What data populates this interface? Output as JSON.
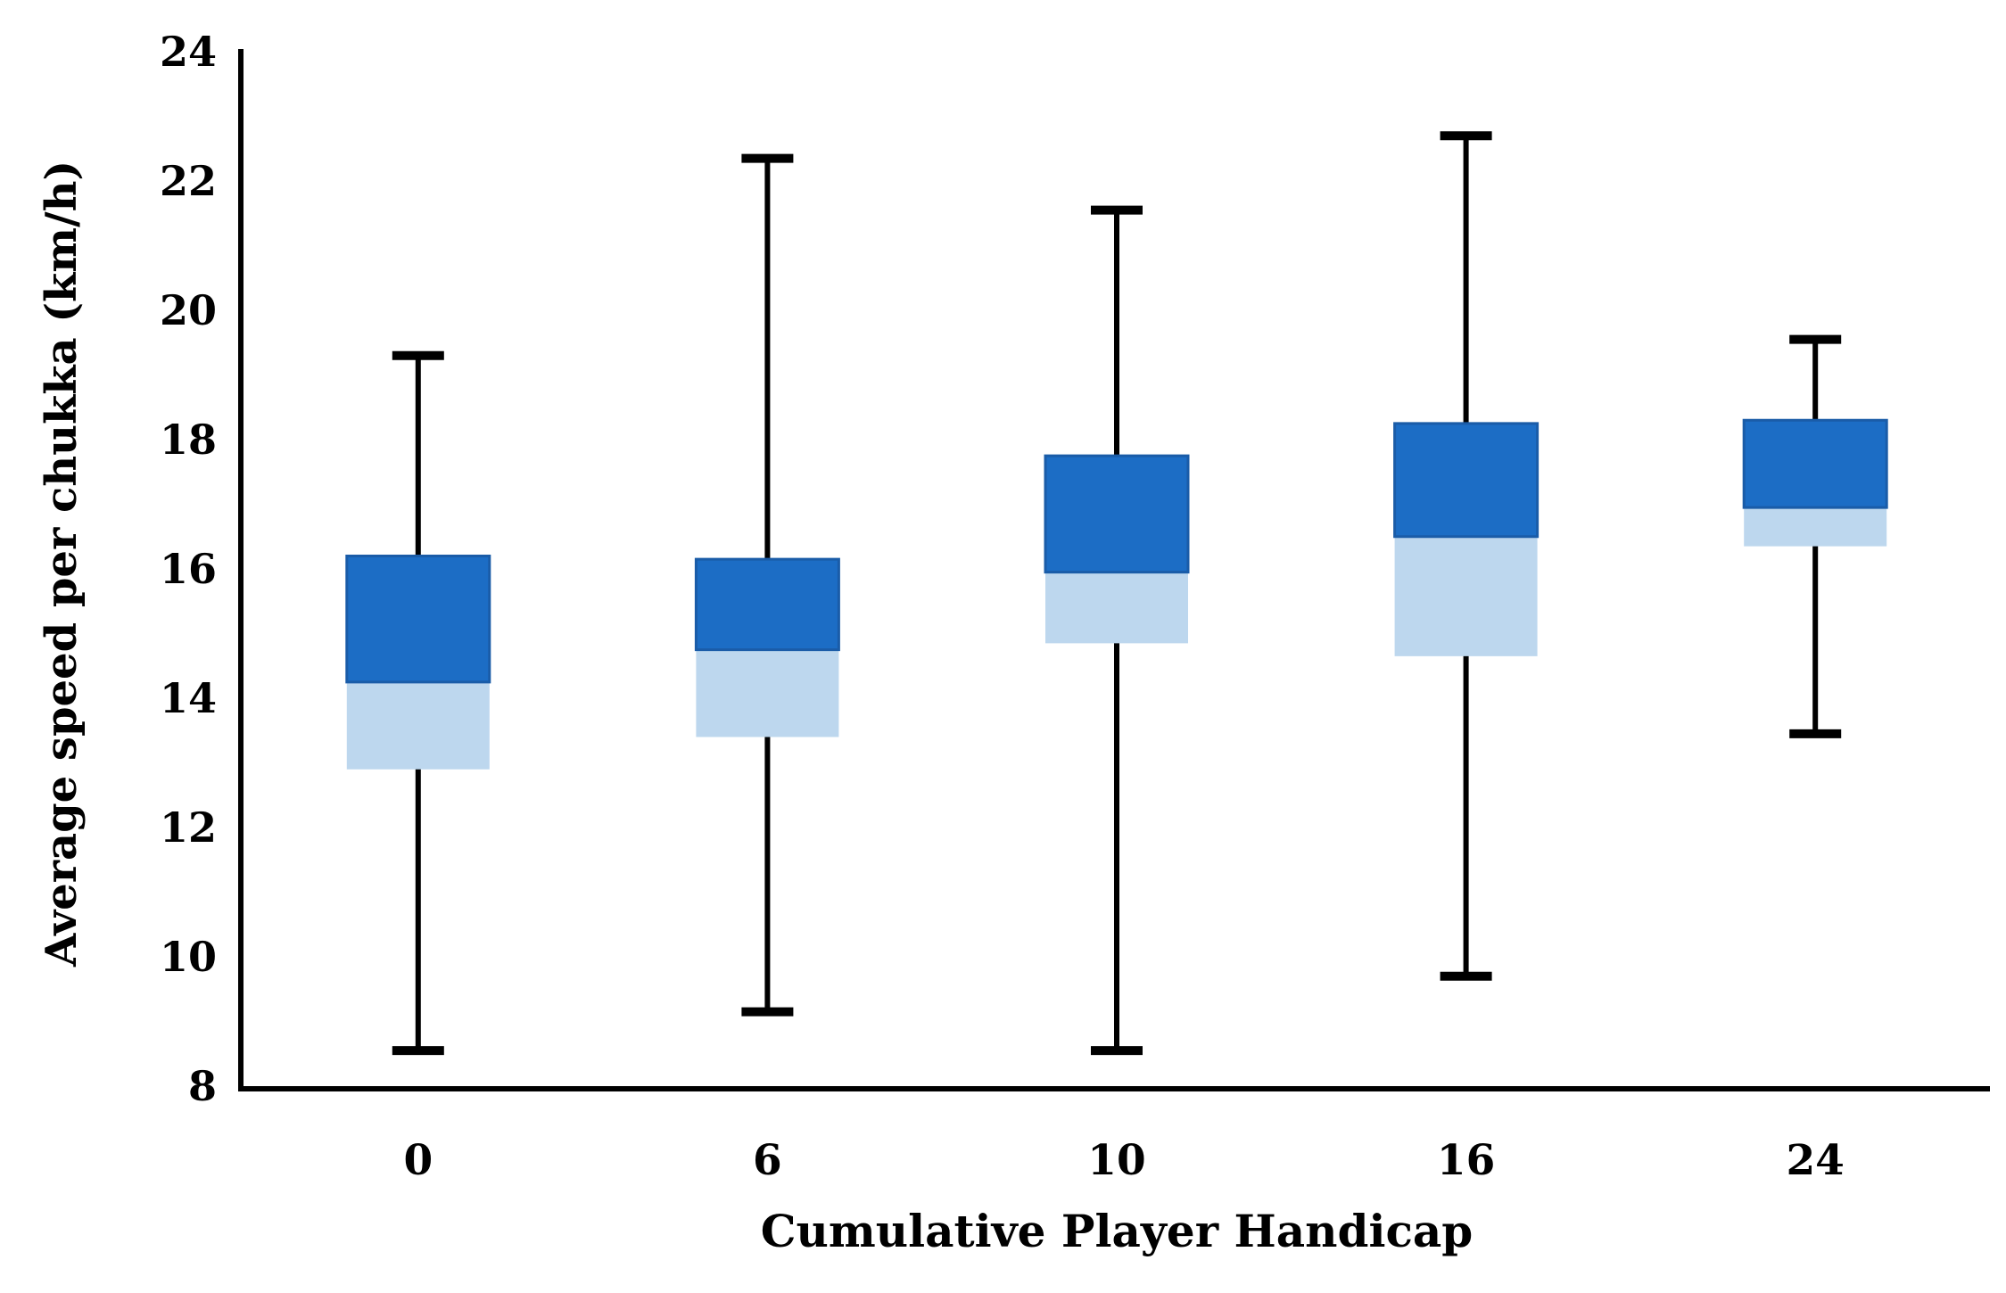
{
  "chart_data": {
    "type": "boxplot",
    "title": "",
    "xlabel": "Cumulative Player Handicap",
    "ylabel": "Average speed per chukka (km/h)",
    "categories": [
      "0",
      "6",
      "10",
      "16",
      "24"
    ],
    "y_ticks": [
      8,
      10,
      12,
      14,
      16,
      18,
      20,
      22,
      24
    ],
    "ylim": [
      8,
      24
    ],
    "grid": false,
    "legend_position": "none",
    "series": [
      {
        "category": "0",
        "min": 8.55,
        "q1": 12.9,
        "median": 14.25,
        "q3": 16.2,
        "max": 19.3
      },
      {
        "category": "6",
        "min": 9.15,
        "q1": 13.4,
        "median": 14.75,
        "q3": 16.15,
        "max": 22.35
      },
      {
        "category": "10",
        "min": 8.55,
        "q1": 14.85,
        "median": 15.95,
        "q3": 17.75,
        "max": 21.55
      },
      {
        "category": "16",
        "min": 9.7,
        "q1": 14.65,
        "median": 16.5,
        "q3": 18.25,
        "max": 22.7
      },
      {
        "category": "24",
        "min": 13.45,
        "q1": 16.35,
        "median": 16.95,
        "q3": 18.3,
        "max": 19.55
      }
    ],
    "colors": {
      "upper_box_fill": "#1c6dc5",
      "upper_box_border": "#1a5ca8",
      "lower_box_fill": "#bdd7ee",
      "whisker": "#000000",
      "axis": "#000000"
    }
  }
}
